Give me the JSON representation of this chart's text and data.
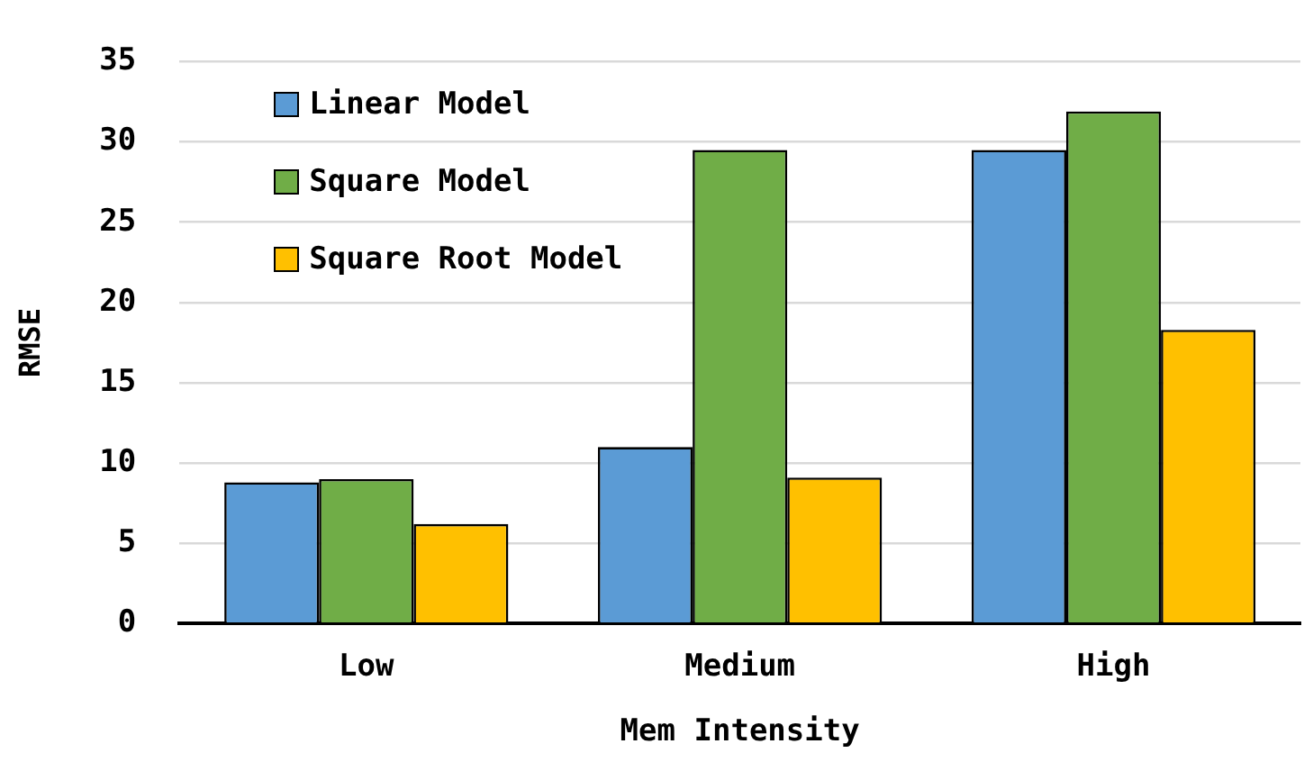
{
  "chart_data": {
    "type": "bar",
    "xlabel": "Mem Intensity",
    "ylabel": "RMSE",
    "categories": [
      "Low",
      "Medium",
      "High"
    ],
    "series": [
      {
        "name": "Linear Model",
        "color": "#5b9bd5",
        "values": [
          8.8,
          11.0,
          29.5
        ]
      },
      {
        "name": "Square Model",
        "color": "#70ad47",
        "values": [
          9.0,
          29.5,
          31.9
        ]
      },
      {
        "name": "Square Root Model",
        "color": "#ffc000",
        "values": [
          6.2,
          9.1,
          18.3
        ]
      }
    ],
    "ylim": [
      0,
      35
    ],
    "yticks": [
      0,
      5,
      10,
      15,
      20,
      25,
      30,
      35
    ],
    "grid": "y",
    "legend": "top left"
  }
}
